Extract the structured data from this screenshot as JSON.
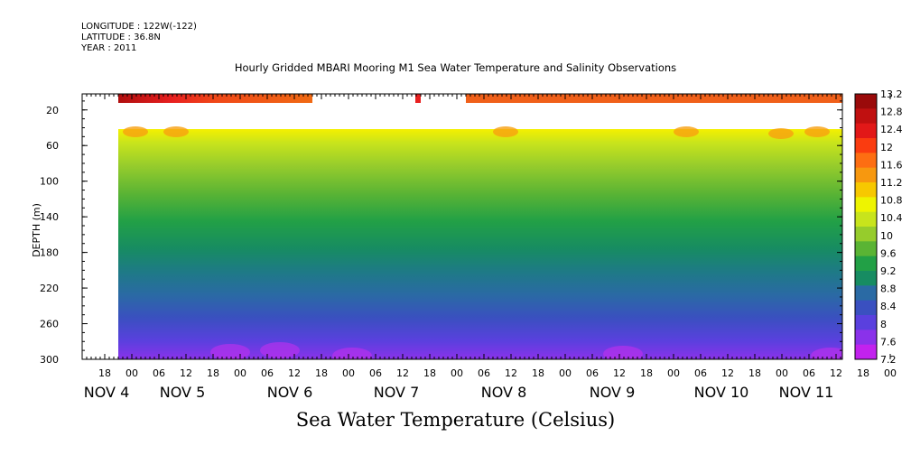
{
  "meta": {
    "longitude": "LONGITUDE : 122W(-122)",
    "latitude": "LATITUDE : 36.8N",
    "year": "YEAR : 2011"
  },
  "title": "Hourly Gridded MBARI Mooring M1 Sea Water Temperature and Salinity Observations",
  "x_title": "Sea Water Temperature (Celsius)",
  "chart_data": {
    "type": "heatmap",
    "title": "Hourly Gridded MBARI Mooring M1 Sea Water Temperature and Salinity Observations",
    "xlabel": "Sea Water Temperature (Celsius)",
    "ylabel": "DEPTH (m)",
    "y_ticks": [
      20,
      60,
      100,
      140,
      180,
      220,
      260,
      300
    ],
    "y_range": [
      300,
      2
    ],
    "hour_ticks": [
      "18",
      "00",
      "06",
      "12",
      "18",
      "00",
      "06",
      "12",
      "18",
      "00",
      "06",
      "12",
      "18",
      "00",
      "06",
      "12",
      "18",
      "00",
      "06",
      "12",
      "18",
      "00",
      "06",
      "12",
      "18",
      "00",
      "06",
      "12",
      "18",
      "00",
      "06",
      "12"
    ],
    "day_labels": [
      "NOV  4",
      "NOV  5",
      "NOV  6",
      "NOV  7",
      "NOV  8",
      "NOV  9",
      "NOV 10",
      "NOV 11"
    ],
    "colorbar": {
      "levels": [
        13.2,
        12.8,
        12.4,
        12,
        11.6,
        11.2,
        10.8,
        10.4,
        10,
        9.6,
        9.2,
        8.8,
        8.4,
        8,
        7.6,
        7.2
      ],
      "colors": [
        "#9a0a0a",
        "#c01010",
        "#e21818",
        "#fa3c10",
        "#fd6e12",
        "#f7980f",
        "#f7c800",
        "#eef400",
        "#c8e41c",
        "#96cc2c",
        "#5ab434",
        "#22a046",
        "#178c62",
        "#2a6aa4",
        "#3a50c0",
        "#5a40de",
        "#8a32ea",
        "#c222ee"
      ]
    },
    "depth_profile_typical": [
      {
        "depth": 40,
        "value": 11.1
      },
      {
        "depth": 60,
        "value": 10.4
      },
      {
        "depth": 100,
        "value": 10.0
      },
      {
        "depth": 140,
        "value": 9.4
      },
      {
        "depth": 180,
        "value": 9.0
      },
      {
        "depth": 220,
        "value": 8.6
      },
      {
        "depth": 260,
        "value": 8.1
      },
      {
        "depth": 300,
        "value": 7.5
      }
    ],
    "surface_band_value": 12.6,
    "grid": false,
    "legend": "right"
  }
}
